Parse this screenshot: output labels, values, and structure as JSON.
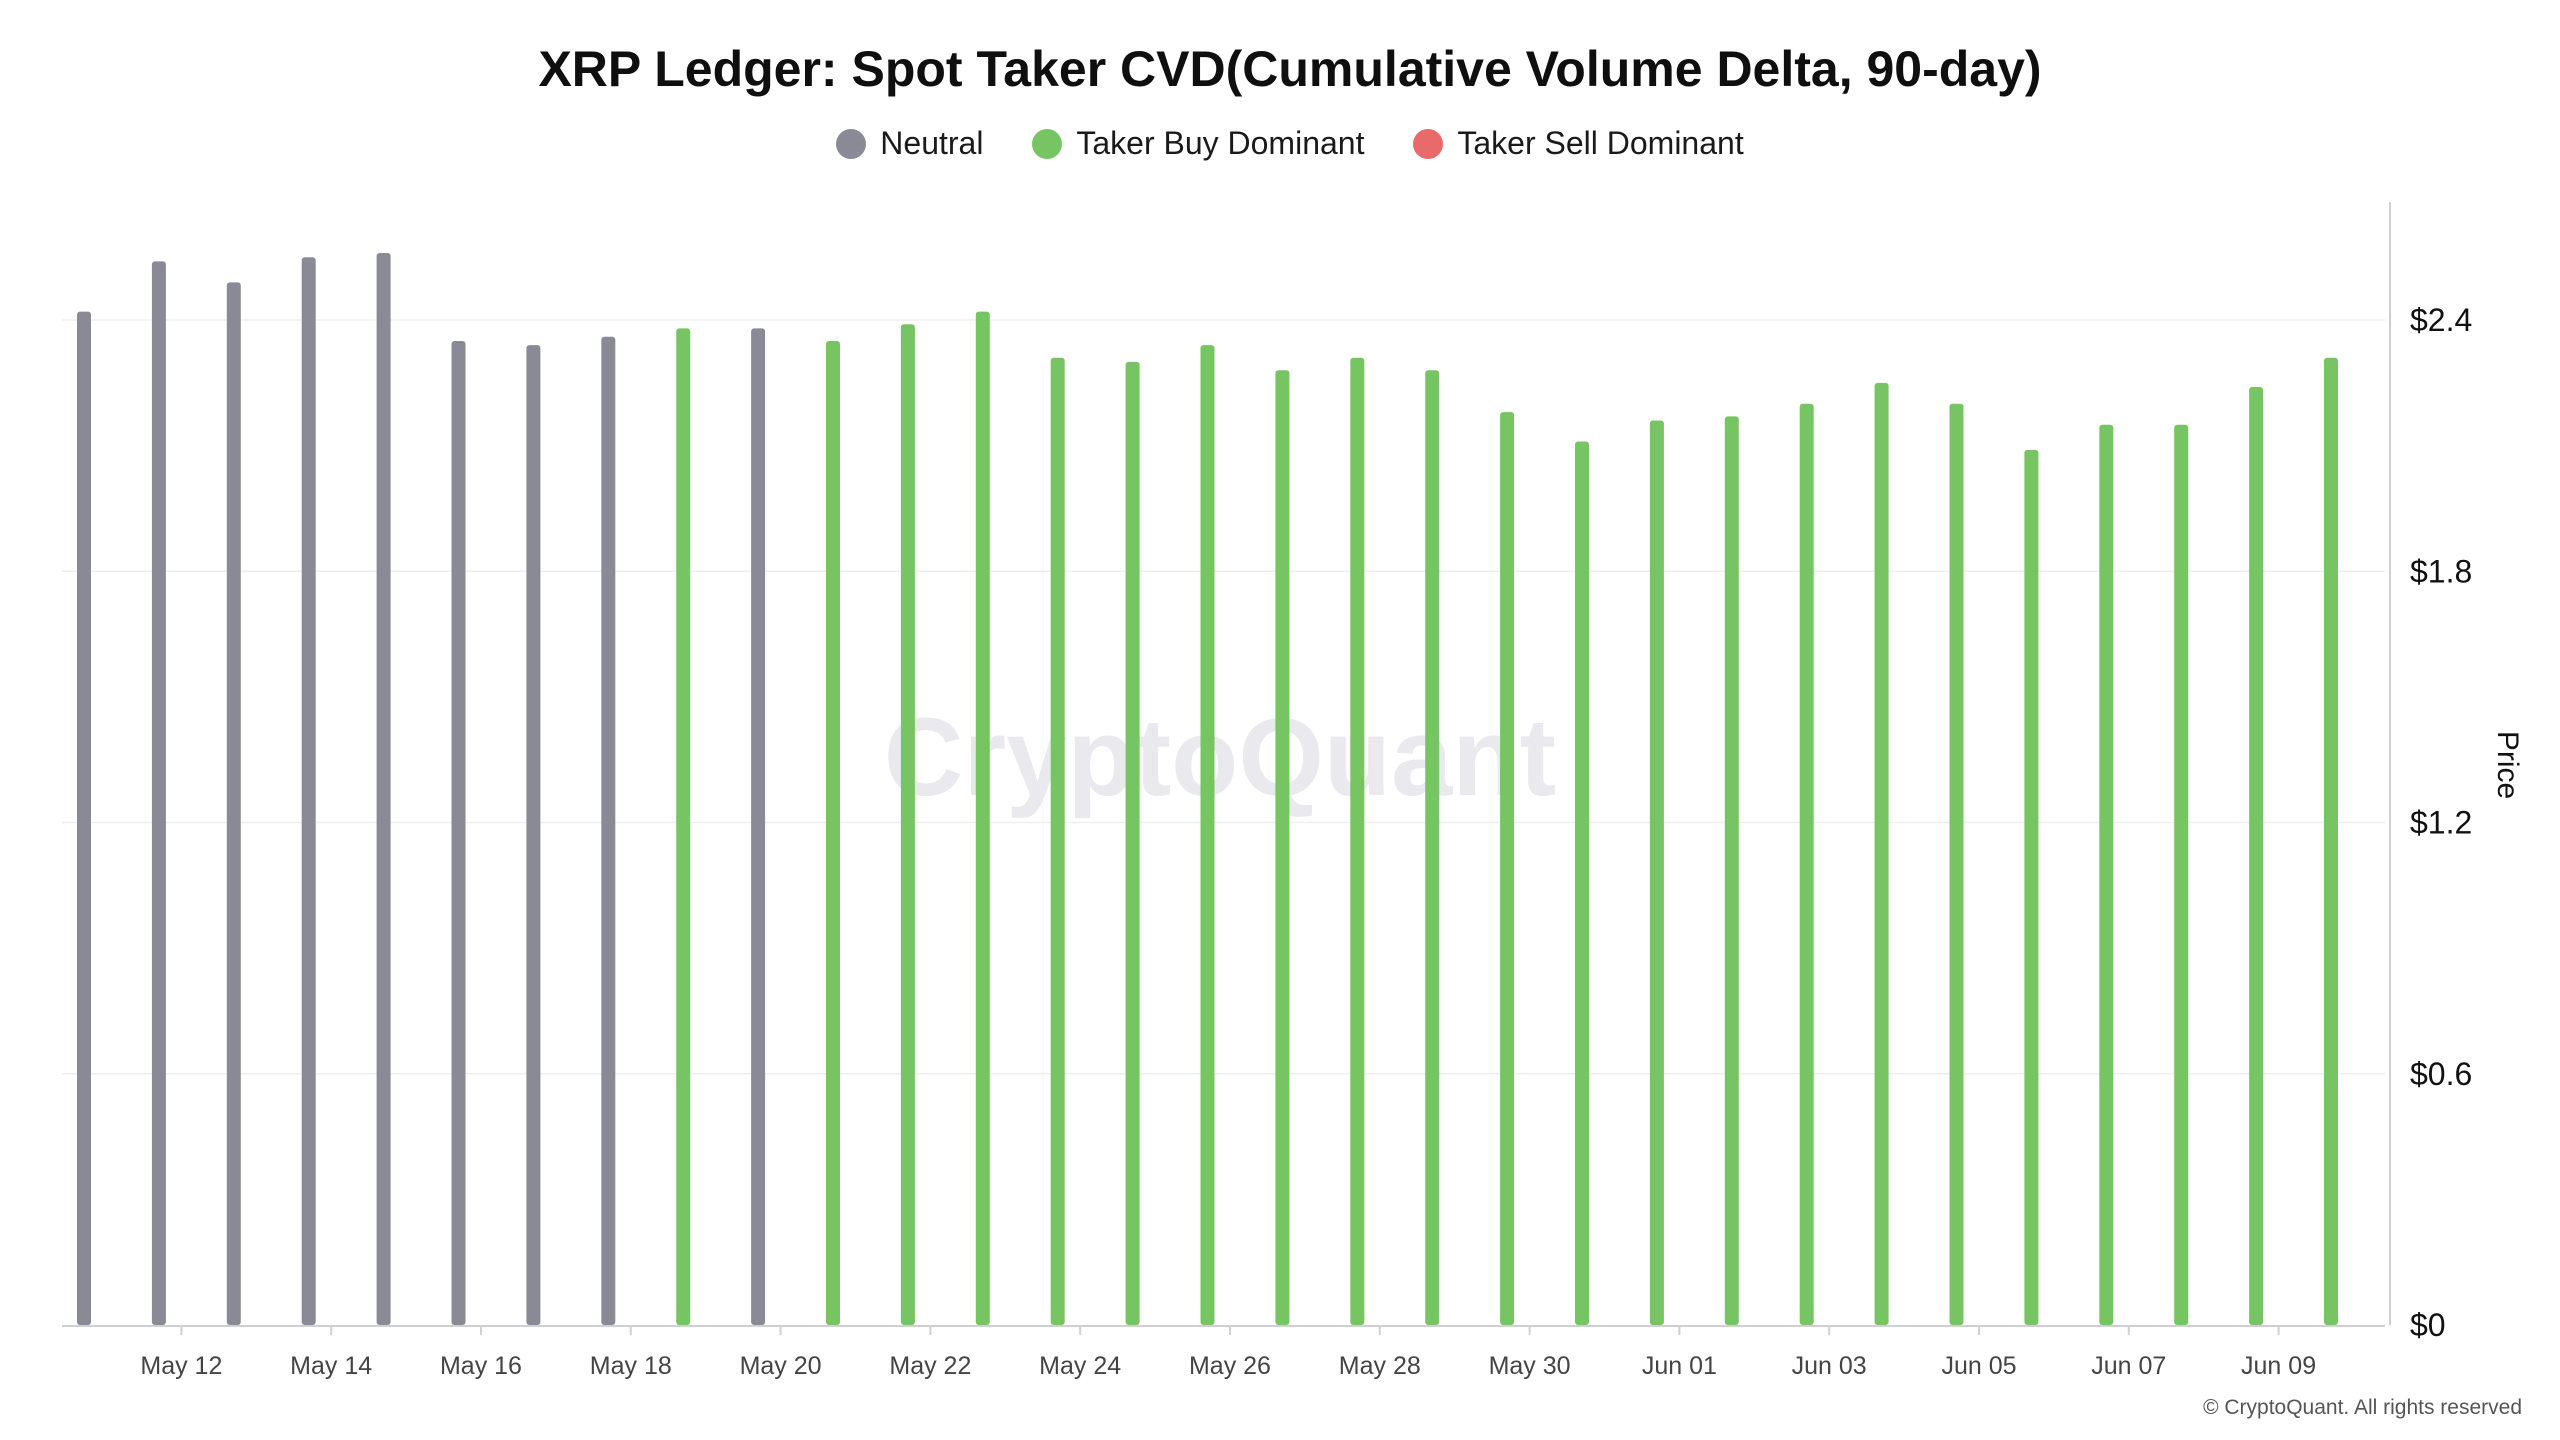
{
  "chart_data": {
    "type": "bar",
    "title": "XRP Ledger: Spot Taker CVD(Cumulative Volume Delta, 90-day)",
    "ylabel": "Price",
    "y_axis_side": "right",
    "ylim": [
      0,
      2.7
    ],
    "yticks": [
      {
        "value": 0,
        "label": "$0"
      },
      {
        "value": 0.6,
        "label": "$0.6"
      },
      {
        "value": 1.2,
        "label": "$1.2"
      },
      {
        "value": 1.8,
        "label": "$1.8"
      },
      {
        "value": 2.4,
        "label": "$2.4"
      }
    ],
    "grid": true,
    "legend_position": "top-center",
    "legend": [
      {
        "name": "Neutral",
        "color": "#8a8a96"
      },
      {
        "name": "Taker Buy Dominant",
        "color": "#77c463"
      },
      {
        "name": "Taker Sell Dominant",
        "color": "#e86a6a"
      }
    ],
    "x_tick_labels": [
      {
        "index": 1.3,
        "label": "May 12"
      },
      {
        "index": 3.3,
        "label": "May 14"
      },
      {
        "index": 5.3,
        "label": "May 16"
      },
      {
        "index": 7.3,
        "label": "May 18"
      },
      {
        "index": 9.3,
        "label": "May 20"
      },
      {
        "index": 11.3,
        "label": "May 22"
      },
      {
        "index": 13.3,
        "label": "May 24"
      },
      {
        "index": 15.3,
        "label": "May 26"
      },
      {
        "index": 17.3,
        "label": "May 28"
      },
      {
        "index": 19.3,
        "label": "May 30"
      },
      {
        "index": 21.3,
        "label": "Jun 01"
      },
      {
        "index": 23.3,
        "label": "Jun 03"
      },
      {
        "index": 25.3,
        "label": "Jun 05"
      },
      {
        "index": 27.3,
        "label": "Jun 07"
      },
      {
        "index": 29.3,
        "label": "Jun 09"
      }
    ],
    "bars": [
      {
        "date": "May 11",
        "value": 2.42,
        "category": "Neutral"
      },
      {
        "date": "May 12",
        "value": 2.54,
        "category": "Neutral"
      },
      {
        "date": "May 13",
        "value": 2.49,
        "category": "Neutral"
      },
      {
        "date": "May 14",
        "value": 2.55,
        "category": "Neutral"
      },
      {
        "date": "May 15",
        "value": 2.56,
        "category": "Neutral"
      },
      {
        "date": "May 16",
        "value": 2.35,
        "category": "Neutral"
      },
      {
        "date": "May 17",
        "value": 2.34,
        "category": "Neutral"
      },
      {
        "date": "May 18",
        "value": 2.36,
        "category": "Neutral"
      },
      {
        "date": "May 19",
        "value": 2.38,
        "category": "Taker Buy Dominant"
      },
      {
        "date": "May 20",
        "value": 2.38,
        "category": "Neutral"
      },
      {
        "date": "May 21",
        "value": 2.35,
        "category": "Taker Buy Dominant"
      },
      {
        "date": "May 22",
        "value": 2.39,
        "category": "Taker Buy Dominant"
      },
      {
        "date": "May 23",
        "value": 2.42,
        "category": "Taker Buy Dominant"
      },
      {
        "date": "May 24",
        "value": 2.31,
        "category": "Taker Buy Dominant"
      },
      {
        "date": "May 25",
        "value": 2.3,
        "category": "Taker Buy Dominant"
      },
      {
        "date": "May 26",
        "value": 2.34,
        "category": "Taker Buy Dominant"
      },
      {
        "date": "May 27",
        "value": 2.28,
        "category": "Taker Buy Dominant"
      },
      {
        "date": "May 28",
        "value": 2.31,
        "category": "Taker Buy Dominant"
      },
      {
        "date": "May 29",
        "value": 2.28,
        "category": "Taker Buy Dominant"
      },
      {
        "date": "May 30",
        "value": 2.18,
        "category": "Taker Buy Dominant"
      },
      {
        "date": "May 31",
        "value": 2.11,
        "category": "Taker Buy Dominant"
      },
      {
        "date": "Jun 01",
        "value": 2.16,
        "category": "Taker Buy Dominant"
      },
      {
        "date": "Jun 02",
        "value": 2.17,
        "category": "Taker Buy Dominant"
      },
      {
        "date": "Jun 03",
        "value": 2.2,
        "category": "Taker Buy Dominant"
      },
      {
        "date": "Jun 04",
        "value": 2.25,
        "category": "Taker Buy Dominant"
      },
      {
        "date": "Jun 05",
        "value": 2.2,
        "category": "Taker Buy Dominant"
      },
      {
        "date": "Jun 06",
        "value": 2.09,
        "category": "Taker Buy Dominant"
      },
      {
        "date": "Jun 07",
        "value": 2.15,
        "category": "Taker Buy Dominant"
      },
      {
        "date": "Jun 08",
        "value": 2.15,
        "category": "Taker Buy Dominant"
      },
      {
        "date": "Jun 09",
        "value": 2.24,
        "category": "Taker Buy Dominant"
      },
      {
        "date": "Jun 10",
        "value": 2.31,
        "category": "Taker Buy Dominant"
      }
    ]
  },
  "watermark": "CryptoQuant",
  "footer": "© CryptoQuant. All rights reserved"
}
